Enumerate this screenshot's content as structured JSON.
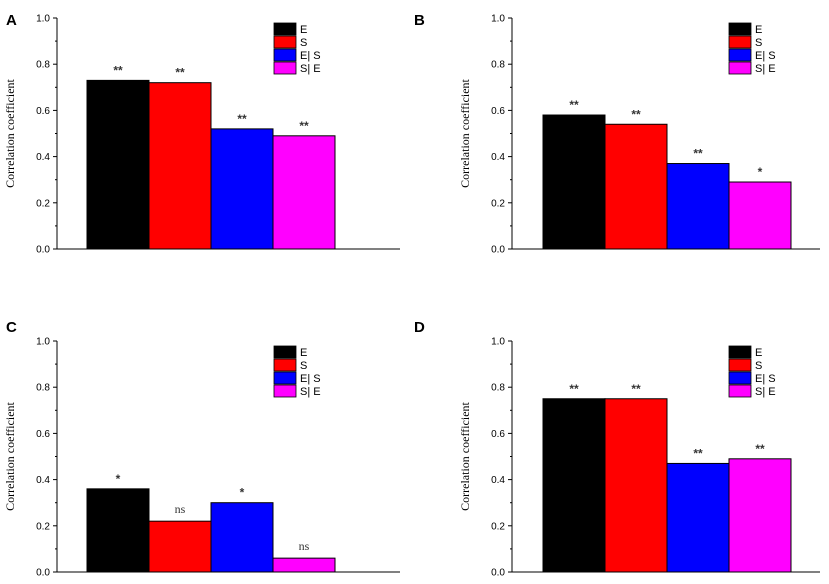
{
  "chart_data": [
    {
      "type": "bar",
      "panel": "A",
      "ylabel": "Correlation coefficient",
      "ylim": [
        0,
        1.0
      ],
      "yticks": [
        "0.0",
        "0.2",
        "0.4",
        "0.6",
        "0.8",
        "1.0"
      ],
      "categories": [
        "E",
        "S",
        "E|S",
        "S|E"
      ],
      "values": [
        0.73,
        0.72,
        0.52,
        0.49
      ],
      "significance": [
        "**",
        "**",
        "**",
        "**"
      ],
      "legend": [
        "E",
        "S",
        "E| S",
        "S| E"
      ]
    },
    {
      "type": "bar",
      "panel": "B",
      "ylabel": "Correlation coefficient",
      "ylim": [
        0,
        1.0
      ],
      "yticks": [
        "0.0",
        "0.2",
        "0.4",
        "0.6",
        "0.8",
        "1.0"
      ],
      "categories": [
        "E",
        "S",
        "E|S",
        "S|E"
      ],
      "values": [
        0.58,
        0.54,
        0.37,
        0.29
      ],
      "significance": [
        "**",
        "**",
        "**",
        "*"
      ],
      "legend": [
        "E",
        "S",
        "E| S",
        "S| E"
      ]
    },
    {
      "type": "bar",
      "panel": "C",
      "ylabel": "Correlation coefficient",
      "ylim": [
        0,
        1.0
      ],
      "yticks": [
        "0.0",
        "0.2",
        "0.4",
        "0.6",
        "0.8",
        "1.0"
      ],
      "categories": [
        "E",
        "S",
        "E|S",
        "S|E"
      ],
      "values": [
        0.36,
        0.22,
        0.3,
        0.06
      ],
      "significance": [
        "*",
        "ns",
        "*",
        "ns"
      ],
      "legend": [
        "E",
        "S",
        "E| S",
        "S| E"
      ]
    },
    {
      "type": "bar",
      "panel": "D",
      "ylabel": "Correlation coefficient",
      "ylim": [
        0,
        1.0
      ],
      "yticks": [
        "0.0",
        "0.2",
        "0.4",
        "0.6",
        "0.8",
        "1.0"
      ],
      "categories": [
        "E",
        "S",
        "E|S",
        "S|E"
      ],
      "values": [
        0.75,
        0.75,
        0.47,
        0.49
      ],
      "significance": [
        "**",
        "**",
        "**",
        "**"
      ],
      "legend": [
        "E",
        "S",
        "E| S",
        "S| E"
      ]
    }
  ],
  "colors": {
    "series": [
      "#000000",
      "#ff0000",
      "#0000ff",
      "#ff00ff"
    ],
    "axis": "#000000"
  }
}
